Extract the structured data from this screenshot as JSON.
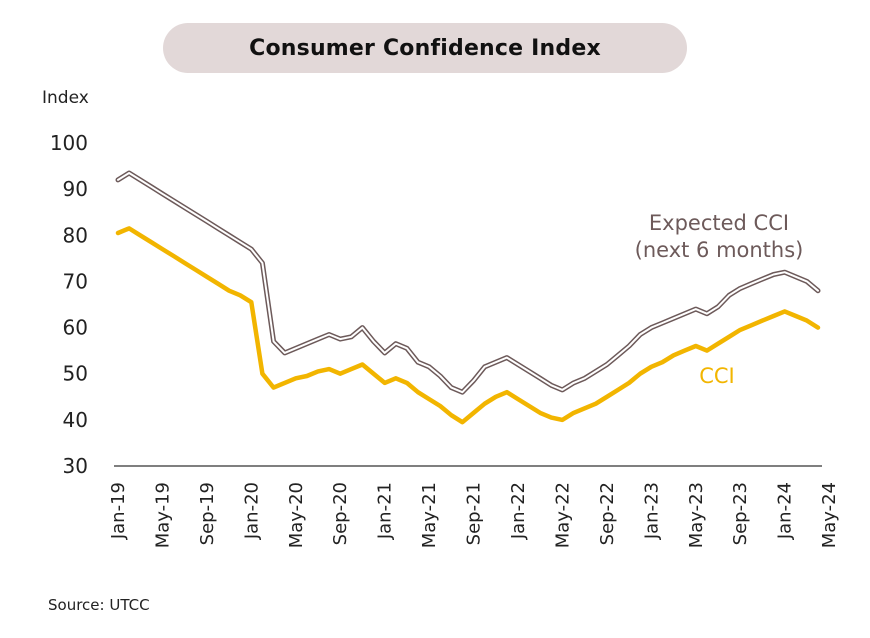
{
  "chart_data": {
    "type": "line",
    "title": "Consumer Confidence Index",
    "ylabel": "Index",
    "source": "Source: UTCC",
    "ylim": [
      30,
      100
    ],
    "yticks": [
      30,
      40,
      50,
      60,
      70,
      80,
      90,
      100
    ],
    "x_start": "Jan-19",
    "xtick_labels": [
      "Jan-19",
      "May-19",
      "Sep-19",
      "Jan-20",
      "May-20",
      "Sep-20",
      "Jan-21",
      "May-21",
      "Sep-21",
      "Jan-22",
      "May-22",
      "Sep-22",
      "Jan-23",
      "May-23",
      "Sep-23",
      "Jan-24",
      "May-24"
    ],
    "xtick_months": [
      0,
      4,
      8,
      12,
      16,
      20,
      24,
      28,
      32,
      36,
      40,
      44,
      48,
      52,
      56,
      60,
      64
    ],
    "grid": false,
    "series": [
      {
        "name": "Expected CCI (next 6 months)",
        "label_line1": "Expected CCI",
        "label_line2": "(next 6 months)",
        "color": "#6d5a5a",
        "values": [
          92,
          93.5,
          92,
          90.5,
          89,
          87.5,
          86,
          84.5,
          83,
          81.5,
          80,
          78.5,
          77,
          74,
          57,
          54.5,
          55.5,
          56.5,
          57.5,
          58.5,
          57.5,
          58,
          60,
          57,
          54.5,
          56.5,
          55.5,
          52.5,
          51.5,
          49.5,
          47,
          46,
          48.5,
          51.5,
          52.5,
          53.5,
          52,
          50.5,
          49,
          47.5,
          46.5,
          48,
          49,
          50.5,
          52,
          54,
          56,
          58.5,
          60,
          61,
          62,
          63,
          64,
          63,
          64.5,
          67,
          68.5,
          69.5,
          70.5,
          71.5,
          72,
          71,
          70,
          68
        ]
      },
      {
        "name": "CCI",
        "label_line1": "CCI",
        "color": "#f2b500",
        "values": [
          80.5,
          81.5,
          80,
          78.5,
          77,
          75.5,
          74,
          72.5,
          71,
          69.5,
          68,
          67,
          65.5,
          50,
          47,
          48,
          49,
          49.5,
          50.5,
          51,
          50,
          51,
          52,
          50,
          48,
          49,
          48,
          46,
          44.5,
          43,
          41,
          39.5,
          41.5,
          43.5,
          45,
          46,
          44.5,
          43,
          41.5,
          40.5,
          40,
          41.5,
          42.5,
          43.5,
          45,
          46.5,
          48,
          50,
          51.5,
          52.5,
          54,
          55,
          56,
          55,
          56.5,
          58,
          59.5,
          60.5,
          61.5,
          62.5,
          63.5,
          62.5,
          61.5,
          60
        ]
      }
    ]
  }
}
